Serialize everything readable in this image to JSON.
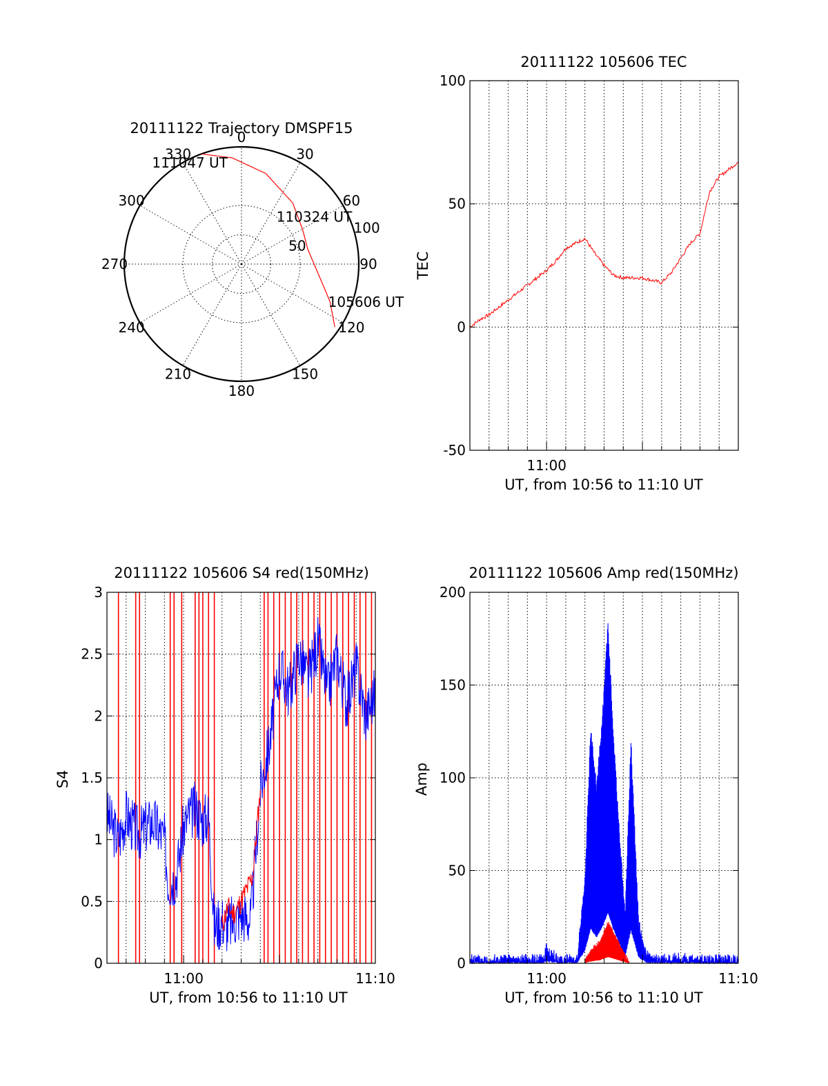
{
  "colors": {
    "red_series": "#ff0000",
    "blue_series": "#0000ff",
    "axes": "#000000",
    "background": "#ffffff"
  },
  "chart_data": [
    {
      "id": "trajectory",
      "type": "polar",
      "title": "20111122 Trajectory DMSPF15",
      "angle_labels": [
        "0",
        "30",
        "60",
        "90",
        "120",
        "150",
        "180",
        "210",
        "240",
        "270",
        "300",
        "330"
      ],
      "angles_deg": [
        0,
        30,
        60,
        90,
        120,
        150,
        180,
        210,
        240,
        270,
        300,
        330
      ],
      "radial_labels": [
        "50",
        "100"
      ],
      "radial_values": [
        50,
        100
      ],
      "radius_max": 100,
      "zenith_grid_circles": [
        25,
        50
      ],
      "grid": true,
      "series": [
        {
          "color": "red",
          "points_az_zenith": [
            [
              124,
              96
            ],
            [
              113,
              82
            ],
            [
              100,
              68
            ],
            [
              78,
              58
            ],
            [
              60,
              60
            ],
            [
              40,
              68
            ],
            [
              15,
              80
            ],
            [
              -5,
              91
            ],
            [
              -20,
              100
            ]
          ]
        }
      ],
      "annotations": [
        {
          "text": "111047 UT",
          "az": -27,
          "zenith": 97
        },
        {
          "text": "110324 UT",
          "az": 57,
          "zenith": 74
        },
        {
          "text": "105606 UT",
          "az": 107,
          "zenith": 111
        }
      ]
    },
    {
      "id": "tec",
      "type": "line",
      "title": "20111122 105606 TEC",
      "xlabel": "UT, from 10:56 to 11:10 UT",
      "ylabel": "TEC",
      "xlim": [
        0,
        14
      ],
      "ylim": [
        -50,
        100
      ],
      "x_ticks": [
        {
          "x": 4,
          "label": "11:00"
        }
      ],
      "y_ticks": [
        -50,
        0,
        50,
        100
      ],
      "grid_x_minutes": [
        1,
        2,
        3,
        4,
        5,
        6,
        7,
        8,
        9,
        10,
        11,
        12,
        13
      ],
      "series": [
        {
          "color": "red",
          "x": [
            0,
            0.5,
            1,
            1.5,
            2,
            2.5,
            3,
            3.5,
            4,
            4.5,
            5,
            5.5,
            6,
            6.5,
            7,
            7.5,
            8,
            8.5,
            9,
            9.5,
            10,
            10.5,
            11,
            11.5,
            12,
            12.5,
            13,
            13.5,
            14
          ],
          "y": [
            0,
            3,
            5,
            8,
            11,
            14,
            17,
            20,
            23,
            27,
            32,
            34,
            36,
            30,
            25,
            21,
            20,
            20,
            20,
            19,
            18,
            22,
            28,
            34,
            38,
            55,
            61,
            64,
            67
          ]
        }
      ]
    },
    {
      "id": "s4",
      "type": "line",
      "title": "20111122 105606 S4 red(150MHz)",
      "xlabel": "UT, from 10:56 to 11:10 UT",
      "ylabel": "S4",
      "xlim": [
        0,
        14
      ],
      "ylim": [
        0,
        3
      ],
      "x_ticks": [
        {
          "x": 4,
          "label": "11:00"
        },
        {
          "x": 14,
          "label": "11:10"
        }
      ],
      "y_ticks": [
        "0",
        "0.5",
        "1",
        "1.5",
        "2",
        "2.5",
        "3"
      ],
      "grid_x_minutes": [
        1,
        2,
        3,
        4,
        5,
        6,
        7,
        8,
        9,
        10,
        11,
        12,
        13
      ],
      "series": [
        {
          "color": "blue",
          "x": [
            0,
            0.3,
            0.6,
            1,
            1.4,
            1.7,
            2,
            2.4,
            2.8,
            3,
            3.2,
            3.6,
            4,
            4.3,
            4.6,
            5,
            5.3,
            5.6,
            6,
            6.3,
            6.6,
            7,
            7.5,
            8,
            8.5,
            9,
            9.5,
            10,
            10.5,
            11,
            11.5,
            12,
            12.5,
            13,
            13.5,
            14
          ],
          "y": [
            1.2,
            1.1,
            1.0,
            1.2,
            1.1,
            1.05,
            1.1,
            1.15,
            1.05,
            1.0,
            0.65,
            0.7,
            1.1,
            1.2,
            1.25,
            1.15,
            1.2,
            0.3,
            0.35,
            0.3,
            0.35,
            0.4,
            0.35,
            1.4,
            1.8,
            2.4,
            2.2,
            2.5,
            2.3,
            2.6,
            2.2,
            2.5,
            2.1,
            2.4,
            2.0,
            2.2
          ]
        },
        {
          "color": "red",
          "x": [
            6,
            6.3,
            6.6,
            7,
            7.3,
            7.6,
            8
          ],
          "y": [
            0.3,
            0.45,
            0.4,
            0.5,
            0.6,
            0.7,
            1.4
          ],
          "spikes_x": [
            0.6,
            1.5,
            1.7,
            3.3,
            3.5,
            3.9,
            4.6,
            4.8,
            5.0,
            5.3,
            5.6,
            8.2,
            8.4,
            8.7,
            9.0,
            9.3,
            9.6,
            9.9,
            10.2,
            10.5,
            10.8,
            11.1,
            11.4,
            11.7,
            12.0,
            12.3,
            12.6,
            12.9,
            13.2,
            13.5,
            13.8
          ]
        }
      ]
    },
    {
      "id": "amp",
      "type": "line",
      "title": "20111122 105606 Amp red(150MHz)",
      "xlabel": "UT, from 10:56 to 11:10 UT",
      "ylabel": "Amp",
      "xlim": [
        0,
        14
      ],
      "ylim": [
        0,
        200
      ],
      "x_ticks": [
        {
          "x": 4,
          "label": "11:00"
        },
        {
          "x": 14,
          "label": "11:10"
        }
      ],
      "y_ticks": [
        0,
        50,
        100,
        150,
        200
      ],
      "grid_x_minutes": [
        1,
        2,
        3,
        4,
        5,
        6,
        7,
        8,
        9,
        10,
        11,
        12,
        13
      ],
      "series": [
        {
          "color": "blue",
          "x": [
            0,
            3.8,
            4,
            4.6,
            5.6,
            6.0,
            6.3,
            6.6,
            6.9,
            7.2,
            7.5,
            7.8,
            8.1,
            8.4,
            8.8,
            9.2,
            9.5,
            10.0,
            11.0,
            12.0,
            13.0,
            14.0
          ],
          "y": [
            2,
            2,
            8,
            2,
            3,
            45,
            125,
            95,
            130,
            183,
            120,
            70,
            25,
            120,
            22,
            5,
            2,
            2,
            3,
            2,
            2,
            2
          ]
        },
        {
          "color": "red",
          "x": [
            6.0,
            6.4,
            6.8,
            7.2,
            7.6,
            8.0,
            8.3
          ],
          "y": [
            2,
            8,
            12,
            22,
            15,
            6,
            1
          ]
        }
      ]
    }
  ]
}
